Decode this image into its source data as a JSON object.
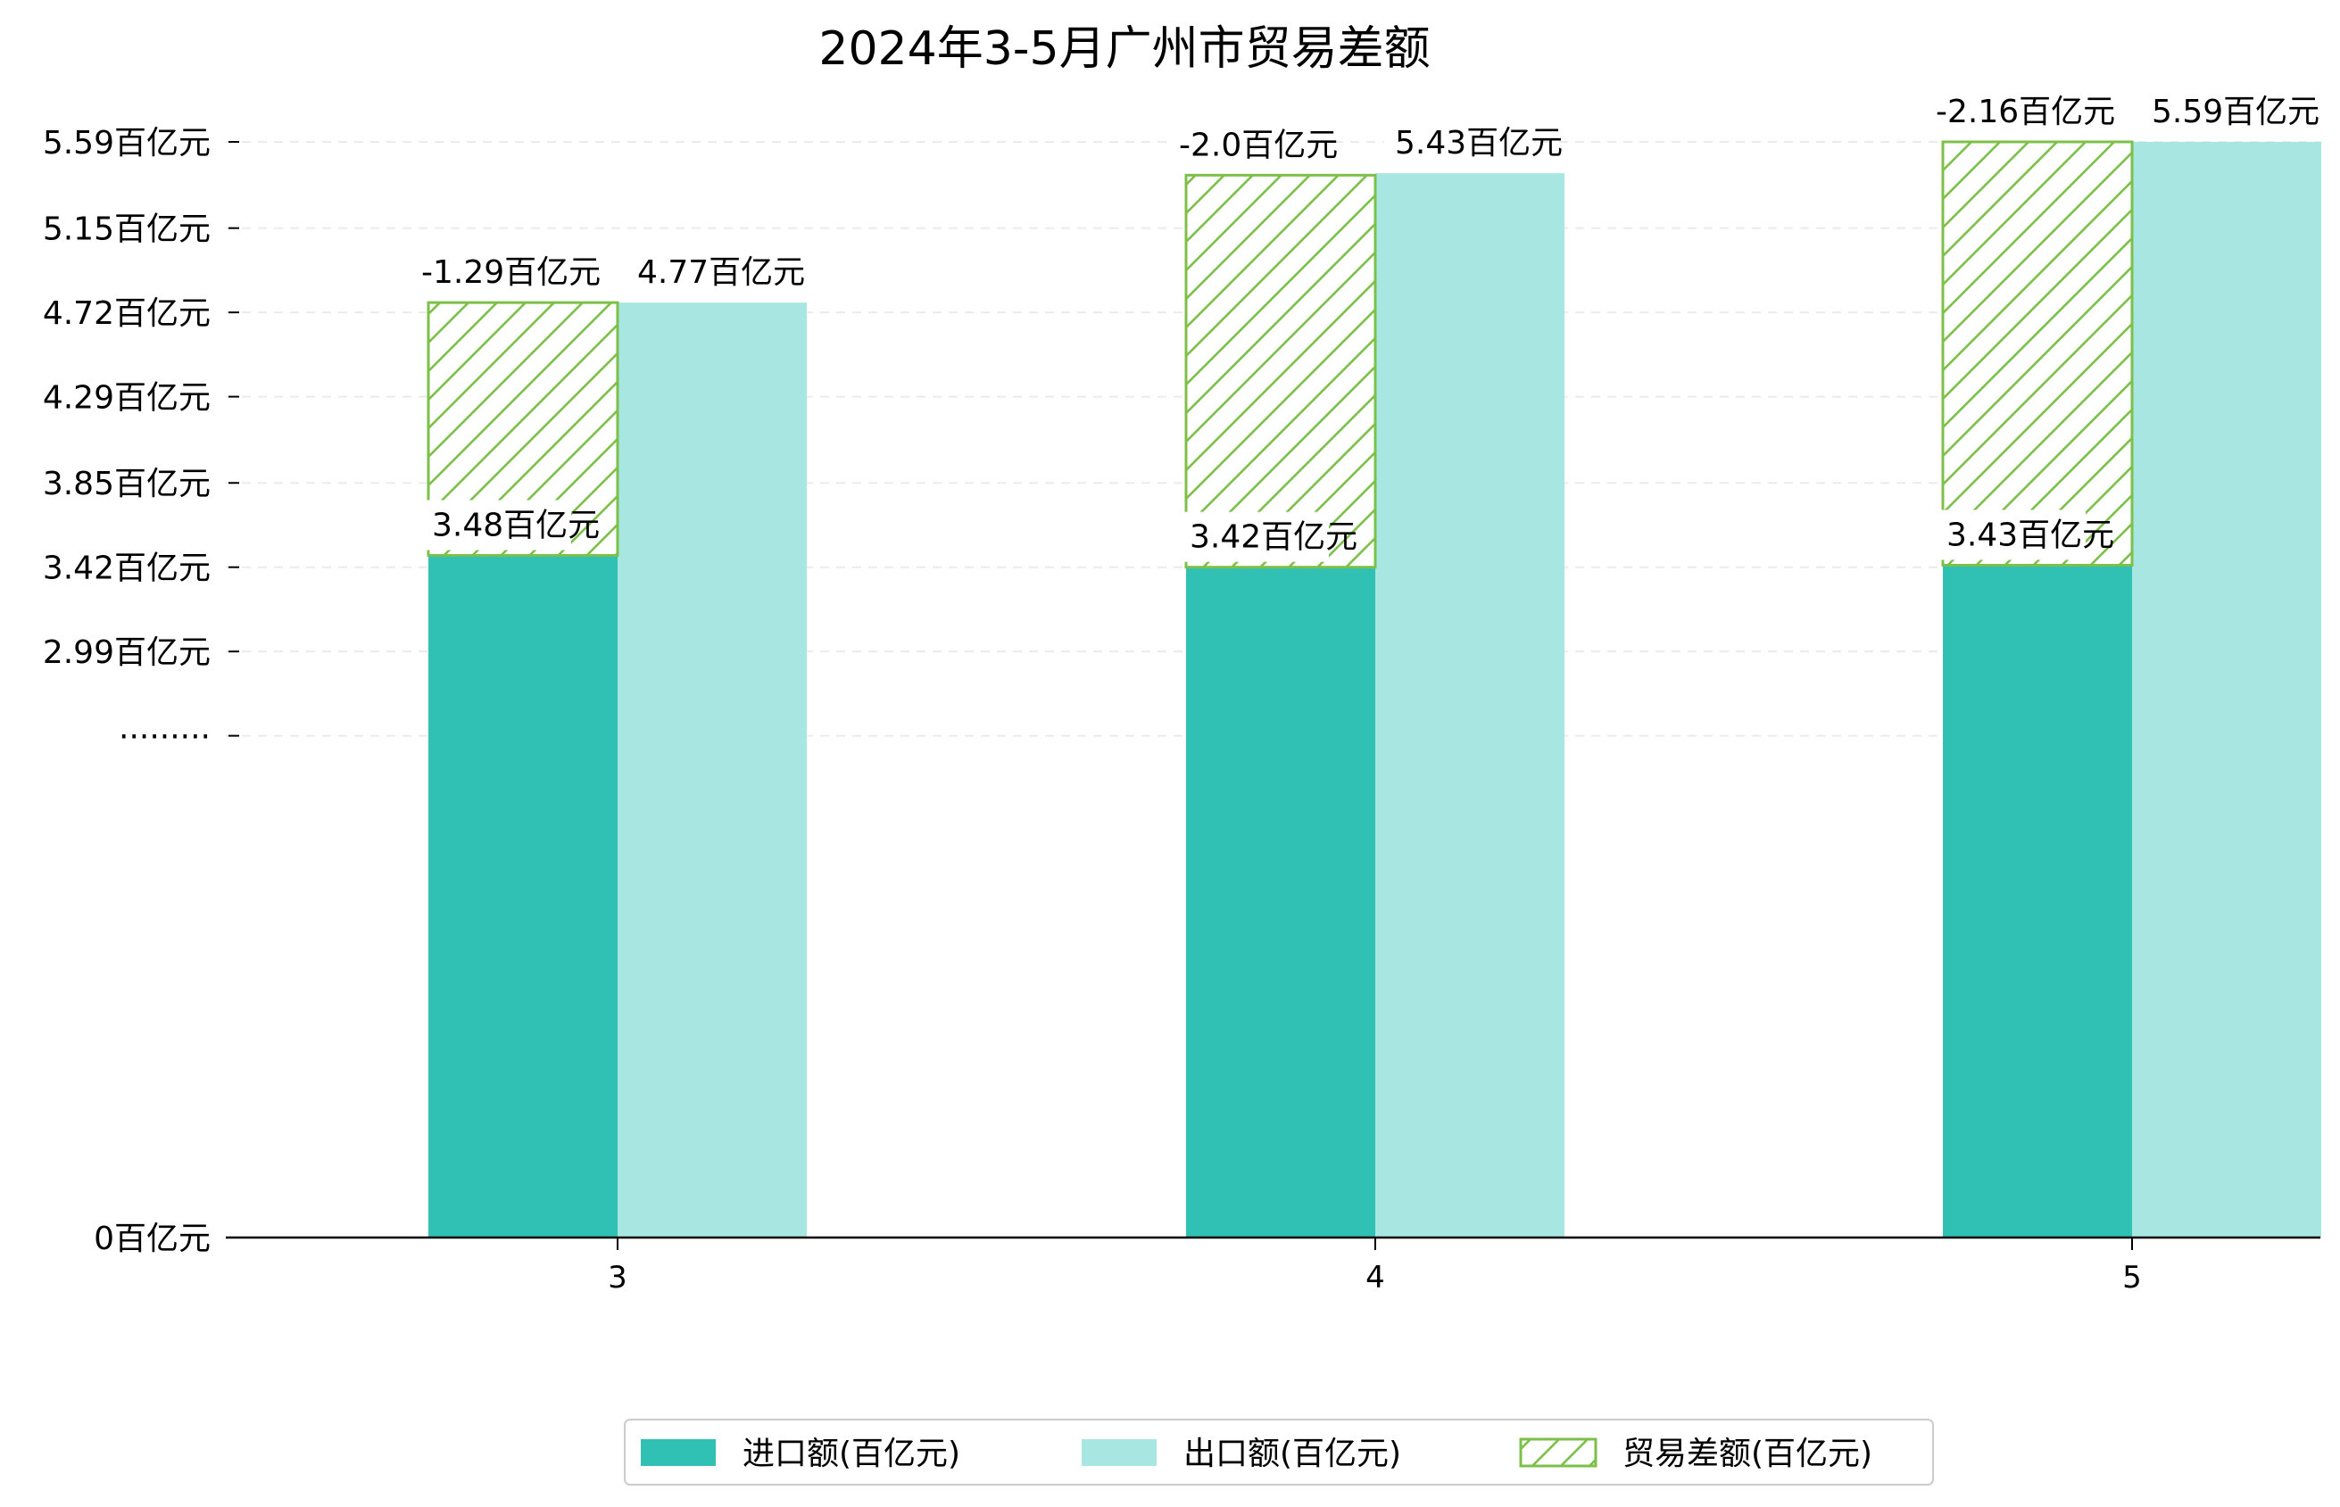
{
  "chart_data": {
    "type": "bar",
    "title": "2024年3-5月广州市贸易差额",
    "categories": [
      "3",
      "4",
      "5"
    ],
    "y_tick_labels": [
      "0百亿元",
      "·········",
      "2.99百亿元",
      "3.42百亿元",
      "3.85百亿元",
      "4.29百亿元",
      "4.72百亿元",
      "5.15百亿元",
      "5.59百亿元"
    ],
    "y_tick_values": [
      0,
      2.56,
      2.99,
      3.42,
      3.85,
      4.29,
      4.72,
      5.15,
      5.59
    ],
    "grid": "horizontal dashed",
    "legend_position": "bottom-center",
    "series": [
      {
        "name": "进口额(百亿元)",
        "color": "#31c1b4",
        "values": [
          3.48,
          3.42,
          3.43
        ],
        "labels": [
          "3.48百亿元",
          "3.42百亿元",
          "3.43百亿元"
        ]
      },
      {
        "name": "出口额(百亿元)",
        "color": "#a8e7e1",
        "values": [
          4.77,
          5.43,
          5.59
        ],
        "labels": [
          "4.77百亿元",
          "5.43百亿元",
          "5.59百亿元"
        ]
      },
      {
        "name": "贸易差额(百亿元)",
        "color": "#7cc04a",
        "hatch": "diagonal",
        "values": [
          -1.29,
          -2.0,
          -2.16
        ],
        "labels": [
          "-1.29百亿元",
          "-2.0百亿元",
          "-2.16百亿元"
        ]
      }
    ]
  }
}
